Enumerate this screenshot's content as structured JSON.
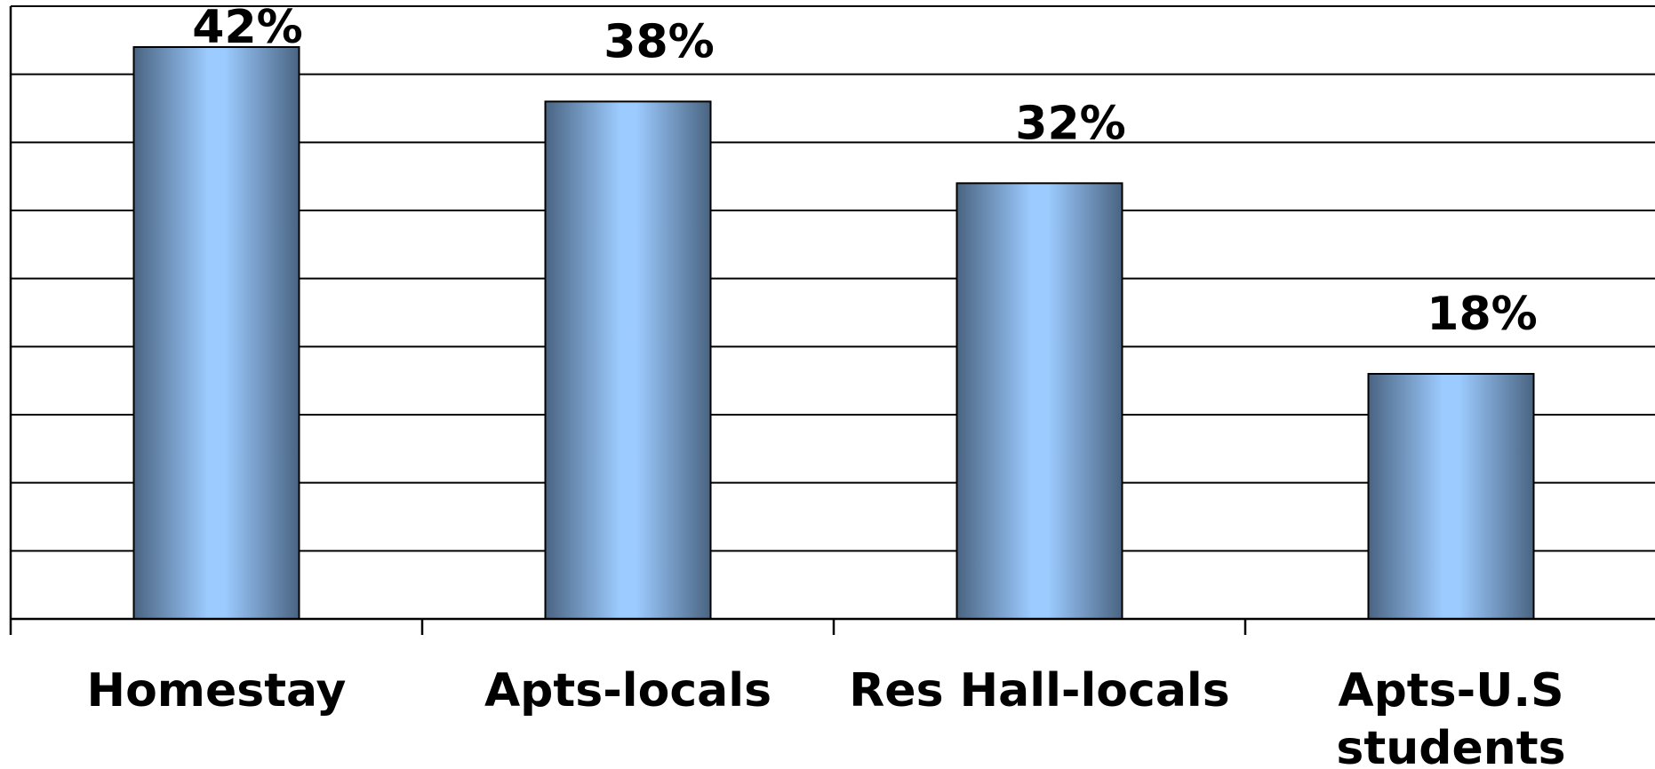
{
  "chart_data": {
    "type": "bar",
    "categories": [
      [
        "Homestay"
      ],
      [
        "Apts-locals"
      ],
      [
        "Res Hall-locals"
      ],
      [
        "Apts-U.S",
        "students"
      ]
    ],
    "values": [
      42,
      38,
      32,
      18
    ],
    "value_labels": [
      "42%",
      "38%",
      "32%",
      "18%"
    ],
    "title": "",
    "xlabel": "",
    "ylabel": "",
    "ylim": [
      0,
      45
    ],
    "gridline_step": 5,
    "grid": true,
    "legend": "none",
    "colors": {
      "bar_edge": "#4a6482",
      "bar_center": "#9ccbff",
      "outline": "#000000"
    }
  }
}
